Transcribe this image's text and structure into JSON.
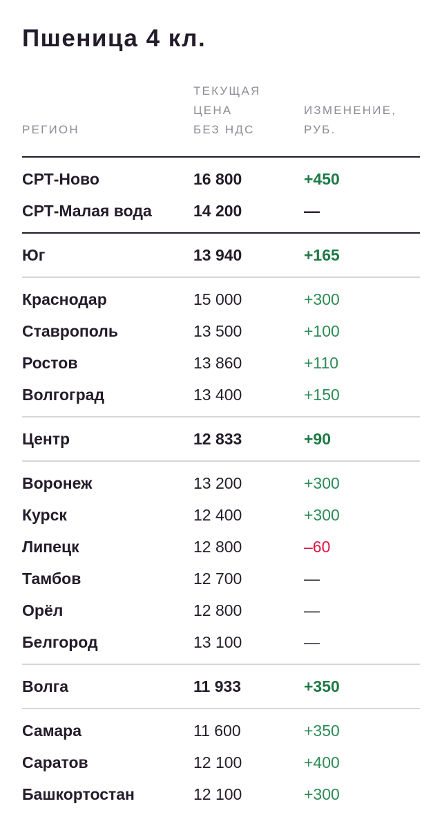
{
  "title": "Пшеница 4 кл.",
  "headers": {
    "region": "РЕГИОН",
    "price": "ТЕКУЩАЯ\nЦЕНА\nБЕЗ НДС",
    "change": "ИЗМЕНЕНИЕ,\nРУБ."
  },
  "colors": {
    "text": "#231c2a",
    "header": "#8f8a94",
    "positive": "#2c8c55",
    "negative": "#e0163f",
    "divider": "#d7d5d9"
  },
  "groups": [
    {
      "border": "dark",
      "rows": [
        {
          "region": "СРТ-Ново",
          "price": "16 800",
          "change": "+450",
          "trend": "pos",
          "bold": true
        },
        {
          "region": "СРТ-Малая вода",
          "price": "14 200",
          "change": "—",
          "trend": "neu",
          "bold": true
        }
      ]
    },
    {
      "border": "light",
      "rows": [
        {
          "region": "Юг",
          "price": "13 940",
          "change": "+165",
          "trend": "pos",
          "bold": true
        }
      ]
    },
    {
      "border": "light",
      "rows": [
        {
          "region": "Краснодар",
          "price": "15 000",
          "change": "+300",
          "trend": "pos",
          "bold": false
        },
        {
          "region": "Ставрополь",
          "price": "13 500",
          "change": "+100",
          "trend": "pos",
          "bold": false
        },
        {
          "region": "Ростов",
          "price": "13 860",
          "change": "+110",
          "trend": "pos",
          "bold": false
        },
        {
          "region": "Волгоград",
          "price": "13 400",
          "change": "+150",
          "trend": "pos",
          "bold": false
        }
      ]
    },
    {
      "border": "light",
      "rows": [
        {
          "region": "Центр",
          "price": "12 833",
          "change": "+90",
          "trend": "pos",
          "bold": true
        }
      ]
    },
    {
      "border": "light",
      "rows": [
        {
          "region": "Воронеж",
          "price": "13 200",
          "change": "+300",
          "trend": "pos",
          "bold": false
        },
        {
          "region": "Курск",
          "price": "12 400",
          "change": "+300",
          "trend": "pos",
          "bold": false
        },
        {
          "region": "Липецк",
          "price": "12 800",
          "change": "–60",
          "trend": "neg",
          "bold": false
        },
        {
          "region": "Тамбов",
          "price": "12 700",
          "change": "—",
          "trend": "neu",
          "bold": false
        },
        {
          "region": "Орёл",
          "price": "12 800",
          "change": "—",
          "trend": "neu",
          "bold": false
        },
        {
          "region": "Белгород",
          "price": "13 100",
          "change": "—",
          "trend": "neu",
          "bold": false
        }
      ]
    },
    {
      "border": "light",
      "rows": [
        {
          "region": "Волга",
          "price": "11 933",
          "change": "+350",
          "trend": "pos",
          "bold": true
        }
      ]
    },
    {
      "border": "none",
      "rows": [
        {
          "region": "Самара",
          "price": "11 600",
          "change": "+350",
          "trend": "pos",
          "bold": false
        },
        {
          "region": "Саратов",
          "price": "12 100",
          "change": "+400",
          "trend": "pos",
          "bold": false
        },
        {
          "region": "Башкортостан",
          "price": "12 100",
          "change": "+300",
          "trend": "pos",
          "bold": false
        }
      ]
    }
  ]
}
